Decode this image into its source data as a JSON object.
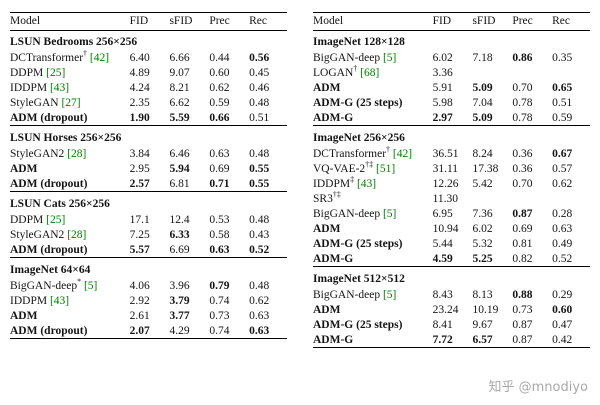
{
  "colors": {
    "citation": "#008000",
    "watermark": "#9a9a9a"
  },
  "columns": [
    "Model",
    "FID",
    "sFID",
    "Prec",
    "Rec"
  ],
  "left": {
    "sections": [
      {
        "title": "LSUN Bedrooms 256×256",
        "rows": [
          {
            "model": "DCTransformer† [42]",
            "model_bold": false,
            "values": [
              "6.40",
              "6.66",
              "0.44",
              "0.56"
            ],
            "bold": [
              false,
              false,
              false,
              true
            ]
          },
          {
            "model": "DDPM [25]",
            "model_bold": false,
            "values": [
              "4.89",
              "9.07",
              "0.60",
              "0.45"
            ],
            "bold": [
              false,
              false,
              false,
              false
            ]
          },
          {
            "model": "IDDPM [43]",
            "model_bold": false,
            "values": [
              "4.24",
              "8.21",
              "0.62",
              "0.46"
            ],
            "bold": [
              false,
              false,
              false,
              false
            ]
          },
          {
            "model": "StyleGAN [27]",
            "model_bold": false,
            "values": [
              "2.35",
              "6.62",
              "0.59",
              "0.48"
            ],
            "bold": [
              false,
              false,
              false,
              false
            ]
          },
          {
            "model": "ADM (dropout)",
            "model_bold": true,
            "values": [
              "1.90",
              "5.59",
              "0.66",
              "0.51"
            ],
            "bold": [
              true,
              true,
              true,
              false
            ]
          }
        ]
      },
      {
        "title": "LSUN Horses 256×256",
        "rows": [
          {
            "model": "StyleGAN2 [28]",
            "model_bold": false,
            "values": [
              "3.84",
              "6.46",
              "0.63",
              "0.48"
            ],
            "bold": [
              false,
              false,
              false,
              false
            ]
          },
          {
            "model": "ADM",
            "model_bold": true,
            "values": [
              "2.95",
              "5.94",
              "0.69",
              "0.55"
            ],
            "bold": [
              false,
              true,
              false,
              true
            ]
          },
          {
            "model": "ADM (dropout)",
            "model_bold": true,
            "values": [
              "2.57",
              "6.81",
              "0.71",
              "0.55"
            ],
            "bold": [
              true,
              false,
              true,
              true
            ]
          }
        ]
      },
      {
        "title": "LSUN Cats 256×256",
        "rows": [
          {
            "model": "DDPM [25]",
            "model_bold": false,
            "values": [
              "17.1",
              "12.4",
              "0.53",
              "0.48"
            ],
            "bold": [
              false,
              false,
              false,
              false
            ]
          },
          {
            "model": "StyleGAN2 [28]",
            "model_bold": false,
            "values": [
              "7.25",
              "6.33",
              "0.58",
              "0.43"
            ],
            "bold": [
              false,
              true,
              false,
              false
            ]
          },
          {
            "model": "ADM (dropout)",
            "model_bold": true,
            "values": [
              "5.57",
              "6.69",
              "0.63",
              "0.52"
            ],
            "bold": [
              true,
              false,
              true,
              true
            ]
          }
        ]
      },
      {
        "title": "ImageNet 64×64",
        "rows": [
          {
            "model": "BigGAN-deep* [5]",
            "model_bold": false,
            "values": [
              "4.06",
              "3.96",
              "0.79",
              "0.48"
            ],
            "bold": [
              false,
              false,
              true,
              false
            ]
          },
          {
            "model": "IDDPM [43]",
            "model_bold": false,
            "values": [
              "2.92",
              "3.79",
              "0.74",
              "0.62"
            ],
            "bold": [
              false,
              true,
              false,
              false
            ]
          },
          {
            "model": "ADM",
            "model_bold": true,
            "values": [
              "2.61",
              "3.77",
              "0.73",
              "0.63"
            ],
            "bold": [
              false,
              true,
              false,
              false
            ]
          },
          {
            "model": "ADM (dropout)",
            "model_bold": true,
            "values": [
              "2.07",
              "4.29",
              "0.74",
              "0.63"
            ],
            "bold": [
              true,
              false,
              false,
              true
            ]
          }
        ]
      }
    ]
  },
  "right": {
    "sections": [
      {
        "title": "ImageNet 128×128",
        "rows": [
          {
            "model": "BigGAN-deep [5]",
            "model_bold": false,
            "values": [
              "6.02",
              "7.18",
              "0.86",
              "0.35"
            ],
            "bold": [
              false,
              false,
              true,
              false
            ]
          },
          {
            "model": "LOGAN† [68]",
            "model_bold": false,
            "values": [
              "3.36",
              "",
              "",
              ""
            ],
            "bold": [
              false,
              false,
              false,
              false
            ]
          },
          {
            "model": "ADM",
            "model_bold": true,
            "values": [
              "5.91",
              "5.09",
              "0.70",
              "0.65"
            ],
            "bold": [
              false,
              true,
              false,
              true
            ]
          },
          {
            "model": "ADM-G (25 steps)",
            "model_bold": true,
            "values": [
              "5.98",
              "7.04",
              "0.78",
              "0.51"
            ],
            "bold": [
              false,
              false,
              false,
              false
            ]
          },
          {
            "model": "ADM-G",
            "model_bold": true,
            "values": [
              "2.97",
              "5.09",
              "0.78",
              "0.59"
            ],
            "bold": [
              true,
              true,
              false,
              false
            ]
          }
        ]
      },
      {
        "title": "ImageNet 256×256",
        "rows": [
          {
            "model": "DCTransformer† [42]",
            "model_bold": false,
            "values": [
              "36.51",
              "8.24",
              "0.36",
              "0.67"
            ],
            "bold": [
              false,
              false,
              false,
              true
            ]
          },
          {
            "model": "VQ-VAE-2†‡ [51]",
            "model_bold": false,
            "values": [
              "31.11",
              "17.38",
              "0.36",
              "0.57"
            ],
            "bold": [
              false,
              false,
              false,
              false
            ]
          },
          {
            "model": "IDDPM‡ [43]",
            "model_bold": false,
            "values": [
              "12.26",
              "5.42",
              "0.70",
              "0.62"
            ],
            "bold": [
              false,
              false,
              false,
              false
            ]
          },
          {
            "model": "SR3†‡",
            "model_bold": false,
            "values": [
              "11.30",
              "",
              "",
              ""
            ],
            "bold": [
              false,
              false,
              false,
              false
            ]
          },
          {
            "model": "BigGAN-deep [5]",
            "model_bold": false,
            "values": [
              "6.95",
              "7.36",
              "0.87",
              "0.28"
            ],
            "bold": [
              false,
              false,
              true,
              false
            ]
          },
          {
            "model": "ADM",
            "model_bold": true,
            "values": [
              "10.94",
              "6.02",
              "0.69",
              "0.63"
            ],
            "bold": [
              false,
              false,
              false,
              false
            ]
          },
          {
            "model": "ADM-G (25 steps)",
            "model_bold": true,
            "values": [
              "5.44",
              "5.32",
              "0.81",
              "0.49"
            ],
            "bold": [
              false,
              false,
              false,
              false
            ]
          },
          {
            "model": "ADM-G",
            "model_bold": true,
            "values": [
              "4.59",
              "5.25",
              "0.82",
              "0.52"
            ],
            "bold": [
              true,
              true,
              false,
              false
            ]
          }
        ]
      },
      {
        "title": "ImageNet 512×512",
        "rows": [
          {
            "model": "BigGAN-deep [5]",
            "model_bold": false,
            "values": [
              "8.43",
              "8.13",
              "0.88",
              "0.29"
            ],
            "bold": [
              false,
              false,
              true,
              false
            ]
          },
          {
            "model": "ADM",
            "model_bold": true,
            "values": [
              "23.24",
              "10.19",
              "0.73",
              "0.60"
            ],
            "bold": [
              false,
              false,
              false,
              true
            ]
          },
          {
            "model": "ADM-G (25 steps)",
            "model_bold": true,
            "values": [
              "8.41",
              "9.67",
              "0.87",
              "0.47"
            ],
            "bold": [
              false,
              false,
              false,
              false
            ]
          },
          {
            "model": "ADM-G",
            "model_bold": true,
            "values": [
              "7.72",
              "6.57",
              "0.87",
              "0.42"
            ],
            "bold": [
              true,
              true,
              false,
              false
            ]
          }
        ]
      }
    ]
  },
  "watermark": {
    "text": "知乎 @mnodiyo"
  }
}
